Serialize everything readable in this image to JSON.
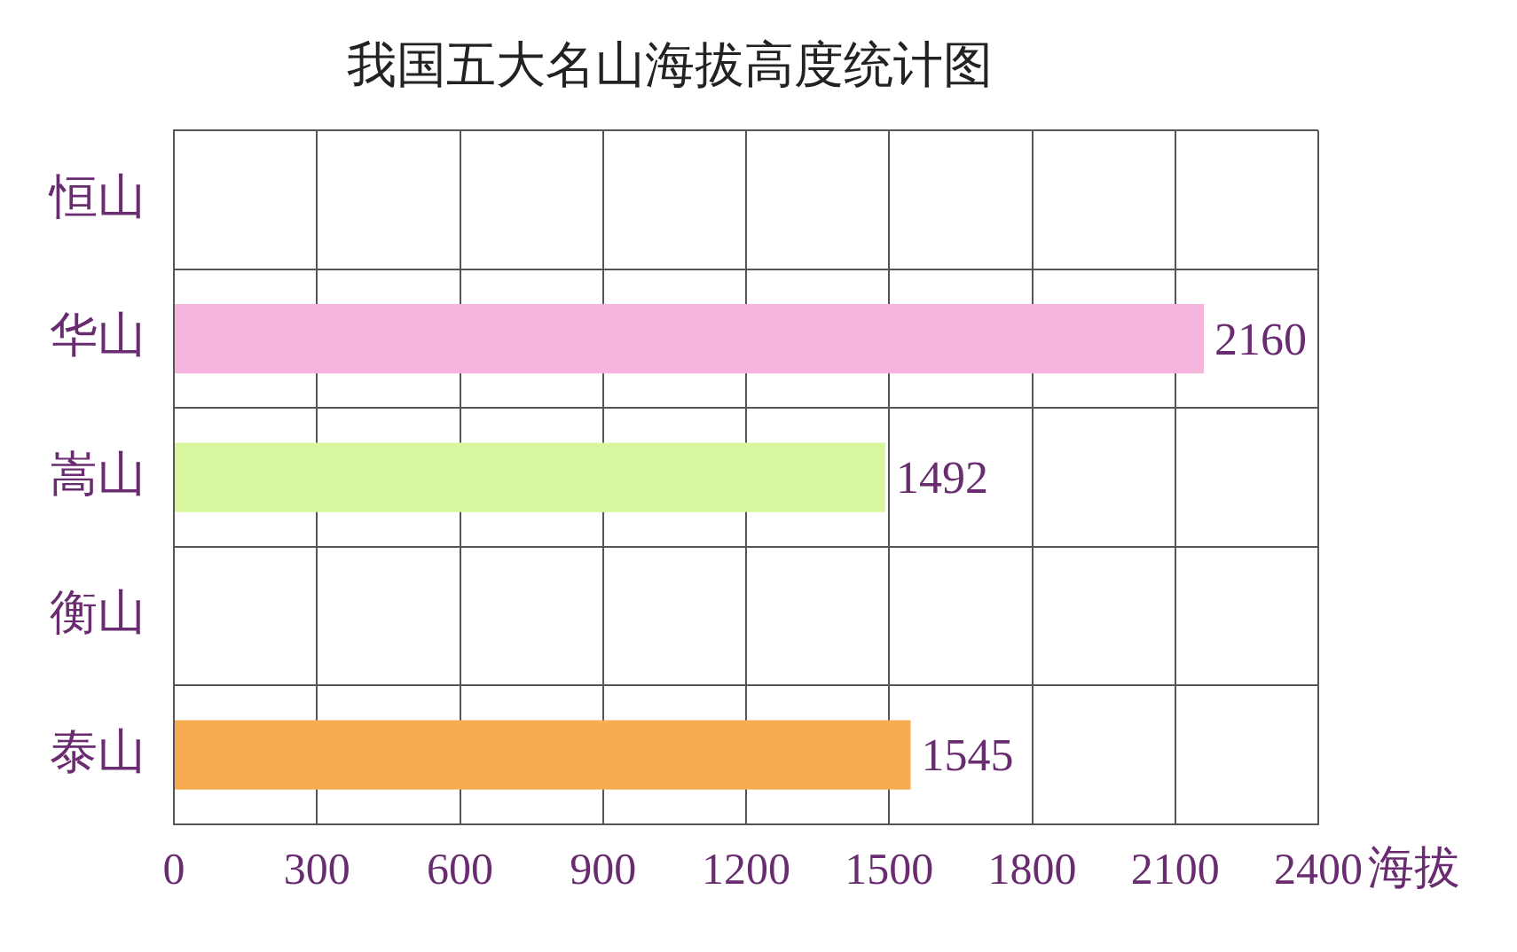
{
  "chart_data": {
    "type": "bar",
    "orientation": "horizontal",
    "title": "我国五大名山海拔高度统计图",
    "xlabel": "海拔",
    "categories": [
      "恒山",
      "华山",
      "嵩山",
      "衡山",
      "泰山"
    ],
    "values": [
      null,
      2160,
      1492,
      null,
      1545
    ],
    "colors": [
      "#f5b4dc",
      "#f5b4dc",
      "#d8f5a0",
      "#c8c8c8",
      "#f7ac50"
    ],
    "xlim": [
      0,
      2400
    ],
    "xticks": [
      0,
      300,
      600,
      900,
      1200,
      1500,
      1800,
      2100,
      2400
    ],
    "grid": true,
    "legend": false,
    "data_labels": true
  }
}
